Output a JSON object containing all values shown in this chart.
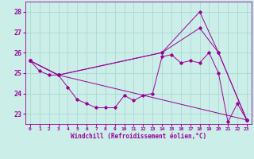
{
  "xlabel": "Windchill (Refroidissement éolien,°C)",
  "background_color": "#cceee8",
  "grid_color": "#aad8d4",
  "line_color": "#990099",
  "xlim": [
    -0.5,
    23.5
  ],
  "ylim": [
    22.5,
    28.5
  ],
  "yticks": [
    23,
    24,
    25,
    26,
    27,
    28
  ],
  "xticks": [
    0,
    1,
    2,
    3,
    4,
    5,
    6,
    7,
    8,
    9,
    10,
    11,
    12,
    13,
    14,
    15,
    16,
    17,
    18,
    19,
    20,
    21,
    22,
    23
  ],
  "series": [
    {
      "x": [
        0,
        1,
        2,
        3,
        4,
        5,
        6,
        7,
        8,
        9,
        10,
        11,
        12,
        13,
        14,
        15,
        16,
        17,
        18,
        19,
        20,
        21,
        22,
        23
      ],
      "y": [
        25.6,
        25.1,
        24.9,
        24.9,
        24.3,
        23.7,
        23.5,
        23.3,
        23.3,
        23.3,
        23.9,
        23.65,
        23.9,
        24.0,
        25.8,
        25.9,
        25.5,
        25.6,
        25.5,
        26.0,
        25.0,
        22.6,
        23.5,
        22.7
      ]
    },
    {
      "x": [
        0,
        3,
        14,
        18,
        20,
        23
      ],
      "y": [
        25.6,
        24.9,
        26.0,
        28.0,
        26.0,
        22.7
      ]
    },
    {
      "x": [
        0,
        3,
        14,
        18,
        20,
        23
      ],
      "y": [
        25.6,
        24.9,
        26.0,
        27.2,
        26.0,
        22.7
      ]
    },
    {
      "x": [
        0,
        3,
        23
      ],
      "y": [
        25.6,
        24.9,
        22.7
      ]
    }
  ]
}
